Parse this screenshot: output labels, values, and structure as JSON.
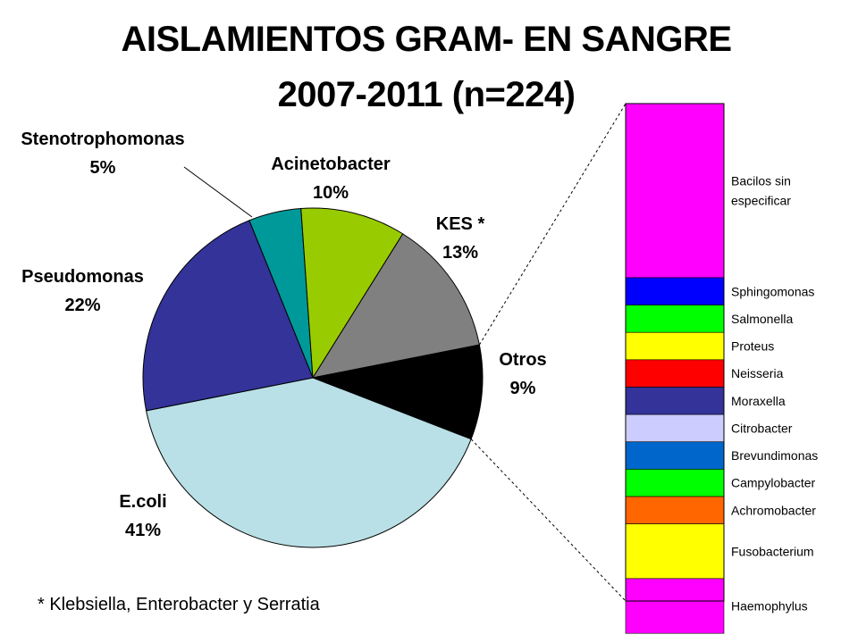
{
  "title_line1": "AISLAMIENTOS GRAM- EN SANGRE",
  "title_line2": "2007-2011 (n=224)",
  "footnote": "* Klebsiella, Enterobacter y Serratia",
  "chart_data": [
    {
      "type": "pie",
      "slices": [
        {
          "label": "Stenotrophomonas",
          "pct_label": "5%",
          "value": 5,
          "color": "#009999"
        },
        {
          "label": "Acinetobacter",
          "pct_label": "10%",
          "value": 10,
          "color": "#99cc00"
        },
        {
          "label": "KES *",
          "pct_label": "13%",
          "value": 13,
          "color": "#808080"
        },
        {
          "label": "Otros",
          "pct_label": "9%",
          "value": 9,
          "color": "#000000"
        },
        {
          "label": "E.coli",
          "pct_label": "41%",
          "value": 41,
          "color": "#b9e0e6"
        },
        {
          "label": "Pseudomonas",
          "pct_label": "22%",
          "value": 22,
          "color": "#333399"
        }
      ]
    },
    {
      "type": "bar",
      "stacked": true,
      "description_of": "Otros",
      "segments": [
        {
          "label": "Bacilos sin especificar",
          "share": 0.35,
          "color": "#ff00ff"
        },
        {
          "label": "Sphingomonas",
          "share": 0.055,
          "color": "#0000ff"
        },
        {
          "label": "Salmonella",
          "share": 0.055,
          "color": "#00ff00"
        },
        {
          "label": "Proteus",
          "share": 0.055,
          "color": "#ffff00"
        },
        {
          "label": "Neisseria",
          "share": 0.055,
          "color": "#ff0000"
        },
        {
          "label": "Moraxella",
          "share": 0.055,
          "color": "#333399"
        },
        {
          "label": "Citrobacter",
          "share": 0.055,
          "color": "#ccccff"
        },
        {
          "label": "Brevundimonas",
          "share": 0.055,
          "color": "#0066cc"
        },
        {
          "label": "Campylobacter",
          "share": 0.055,
          "color": "#00ff00"
        },
        {
          "label": "Achromobacter",
          "share": 0.055,
          "color": "#ff6600"
        },
        {
          "label": "Fusobacterium",
          "share": 0.11,
          "color": "#ffff00"
        },
        {
          "label": "Haemophylus",
          "share": 0.11,
          "color": "#ff00ff"
        }
      ]
    }
  ]
}
